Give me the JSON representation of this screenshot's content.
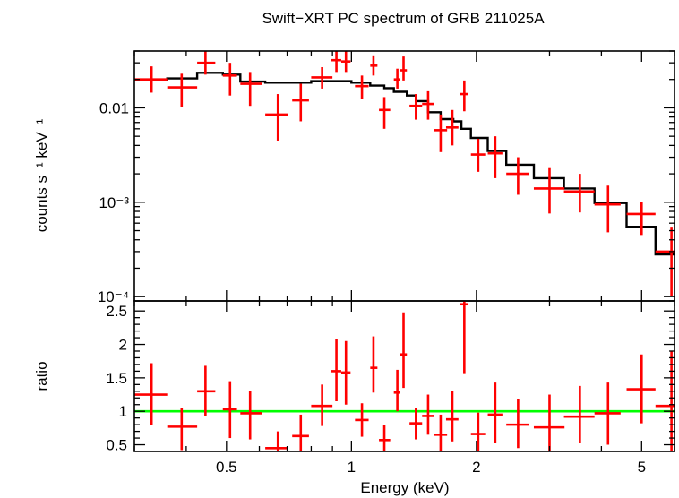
{
  "chart_data": [
    {
      "type": "scatter",
      "panel": "spectrum",
      "title": "Swift−XRT PC spectrum of GRB 211025A",
      "ylabel": "counts s⁻¹ keV⁻¹",
      "x_scale": "log",
      "y_scale": "log",
      "xlim": [
        0.3,
        6.0
      ],
      "ylim": [
        9e-05,
        0.04
      ],
      "y_ticks": [
        {
          "value": 0.01,
          "label": "0.01"
        },
        {
          "value": 0.001,
          "label": "10⁻³"
        },
        {
          "value": 0.0001,
          "label": "10⁻⁴"
        }
      ],
      "series": [
        {
          "kind": "data",
          "color": "#ff0000",
          "points": [
            {
              "x": 0.33,
              "x_lo": 0.3,
              "x_hi": 0.36,
              "y": 0.02,
              "y_lo": 0.0145,
              "y_hi": 0.0275
            },
            {
              "x": 0.39,
              "x_lo": 0.36,
              "x_hi": 0.425,
              "y": 0.0165,
              "y_lo": 0.0102,
              "y_hi": 0.023
            },
            {
              "x": 0.445,
              "x_lo": 0.425,
              "x_hi": 0.47,
              "y": 0.03,
              "y_lo": 0.0225,
              "y_hi": 0.04
            },
            {
              "x": 0.51,
              "x_lo": 0.49,
              "x_hi": 0.53,
              "y": 0.022,
              "y_lo": 0.0135,
              "y_hi": 0.03
            },
            {
              "x": 0.57,
              "x_lo": 0.54,
              "x_hi": 0.61,
              "y": 0.018,
              "y_lo": 0.0105,
              "y_hi": 0.024
            },
            {
              "x": 0.665,
              "x_lo": 0.62,
              "x_hi": 0.705,
              "y": 0.0085,
              "y_lo": 0.0045,
              "y_hi": 0.014
            },
            {
              "x": 0.755,
              "x_lo": 0.72,
              "x_hi": 0.79,
              "y": 0.012,
              "y_lo": 0.0072,
              "y_hi": 0.018
            },
            {
              "x": 0.85,
              "x_lo": 0.8,
              "x_hi": 0.9,
              "y": 0.021,
              "y_lo": 0.016,
              "y_hi": 0.027
            },
            {
              "x": 0.92,
              "x_lo": 0.895,
              "x_hi": 0.945,
              "y": 0.032,
              "y_lo": 0.024,
              "y_hi": 0.04
            },
            {
              "x": 0.97,
              "x_lo": 0.945,
              "x_hi": 0.995,
              "y": 0.031,
              "y_lo": 0.024,
              "y_hi": 0.04
            },
            {
              "x": 1.06,
              "x_lo": 1.02,
              "x_hi": 1.1,
              "y": 0.017,
              "y_lo": 0.0125,
              "y_hi": 0.022
            },
            {
              "x": 1.13,
              "x_lo": 1.11,
              "x_hi": 1.155,
              "y": 0.028,
              "y_lo": 0.022,
              "y_hi": 0.036
            },
            {
              "x": 1.2,
              "x_lo": 1.165,
              "x_hi": 1.24,
              "y": 0.0095,
              "y_lo": 0.006,
              "y_hi": 0.013
            },
            {
              "x": 1.29,
              "x_lo": 1.265,
              "x_hi": 1.31,
              "y": 0.02,
              "y_lo": 0.016,
              "y_hi": 0.026
            },
            {
              "x": 1.335,
              "x_lo": 1.31,
              "x_hi": 1.36,
              "y": 0.025,
              "y_lo": 0.0195,
              "y_hi": 0.035
            },
            {
              "x": 1.43,
              "x_lo": 1.38,
              "x_hi": 1.48,
              "y": 0.0105,
              "y_lo": 0.0075,
              "y_hi": 0.014
            },
            {
              "x": 1.53,
              "x_lo": 1.48,
              "x_hi": 1.58,
              "y": 0.011,
              "y_lo": 0.0075,
              "y_hi": 0.015
            },
            {
              "x": 1.64,
              "x_lo": 1.58,
              "x_hi": 1.7,
              "y": 0.0058,
              "y_lo": 0.0034,
              "y_hi": 0.0085
            },
            {
              "x": 1.75,
              "x_lo": 1.69,
              "x_hi": 1.81,
              "y": 0.0062,
              "y_lo": 0.004,
              "y_hi": 0.0095
            },
            {
              "x": 1.87,
              "x_lo": 1.83,
              "x_hi": 1.91,
              "y": 0.014,
              "y_lo": 0.0092,
              "y_hi": 0.0195
            },
            {
              "x": 2.02,
              "x_lo": 1.94,
              "x_hi": 2.1,
              "y": 0.0032,
              "y_lo": 0.0021,
              "y_hi": 0.0047
            },
            {
              "x": 2.22,
              "x_lo": 2.13,
              "x_hi": 2.31,
              "y": 0.0033,
              "y_lo": 0.0018,
              "y_hi": 0.005
            },
            {
              "x": 2.52,
              "x_lo": 2.36,
              "x_hi": 2.68,
              "y": 0.002,
              "y_lo": 0.0012,
              "y_hi": 0.003
            },
            {
              "x": 3.0,
              "x_lo": 2.75,
              "x_hi": 3.26,
              "y": 0.0014,
              "y_lo": 0.00076,
              "y_hi": 0.0023
            },
            {
              "x": 3.55,
              "x_lo": 3.25,
              "x_hi": 3.85,
              "y": 0.0013,
              "y_lo": 0.00078,
              "y_hi": 0.002
            },
            {
              "x": 4.15,
              "x_lo": 3.85,
              "x_hi": 4.45,
              "y": 0.00095,
              "y_lo": 0.00048,
              "y_hi": 0.0015
            },
            {
              "x": 5.0,
              "x_lo": 4.6,
              "x_hi": 5.4,
              "y": 0.00075,
              "y_lo": 0.00045,
              "y_hi": 0.001
            },
            {
              "x": 5.9,
              "x_lo": 5.4,
              "x_hi": 6.0,
              "y": 0.0003,
              "y_lo": 0.0001,
              "y_hi": 0.00055
            }
          ]
        },
        {
          "kind": "model",
          "color": "#000000",
          "steps": [
            {
              "x_lo": 0.3,
              "x_hi": 0.36,
              "y": 0.02
            },
            {
              "x_lo": 0.36,
              "x_hi": 0.425,
              "y": 0.0205
            },
            {
              "x_lo": 0.425,
              "x_hi": 0.49,
              "y": 0.0235
            },
            {
              "x_lo": 0.49,
              "x_hi": 0.54,
              "y": 0.0225
            },
            {
              "x_lo": 0.54,
              "x_hi": 0.62,
              "y": 0.019
            },
            {
              "x_lo": 0.62,
              "x_hi": 0.8,
              "y": 0.0185
            },
            {
              "x_lo": 0.8,
              "x_hi": 1.0,
              "y": 0.0192
            },
            {
              "x_lo": 1.0,
              "x_hi": 1.11,
              "y": 0.0185
            },
            {
              "x_lo": 1.11,
              "x_hi": 1.2,
              "y": 0.0172
            },
            {
              "x_lo": 1.2,
              "x_hi": 1.265,
              "y": 0.0162
            },
            {
              "x_lo": 1.265,
              "x_hi": 1.36,
              "y": 0.0148
            },
            {
              "x_lo": 1.36,
              "x_hi": 1.43,
              "y": 0.0135
            },
            {
              "x_lo": 1.43,
              "x_hi": 1.53,
              "y": 0.0118
            },
            {
              "x_lo": 1.53,
              "x_hi": 1.64,
              "y": 0.009
            },
            {
              "x_lo": 1.64,
              "x_hi": 1.76,
              "y": 0.0076
            },
            {
              "x_lo": 1.76,
              "x_hi": 1.84,
              "y": 0.0072
            },
            {
              "x_lo": 1.84,
              "x_hi": 1.94,
              "y": 0.006
            },
            {
              "x_lo": 1.94,
              "x_hi": 2.13,
              "y": 0.0048
            },
            {
              "x_lo": 2.13,
              "x_hi": 2.36,
              "y": 0.0035
            },
            {
              "x_lo": 2.36,
              "x_hi": 2.75,
              "y": 0.0025
            },
            {
              "x_lo": 2.75,
              "x_hi": 3.25,
              "y": 0.0018
            },
            {
              "x_lo": 3.25,
              "x_hi": 3.85,
              "y": 0.0014
            },
            {
              "x_lo": 3.85,
              "x_hi": 4.6,
              "y": 0.00098
            },
            {
              "x_lo": 4.6,
              "x_hi": 5.4,
              "y": 0.00055
            },
            {
              "x_lo": 5.4,
              "x_hi": 6.0,
              "y": 0.00028
            }
          ]
        }
      ]
    },
    {
      "type": "scatter",
      "panel": "ratio",
      "xlabel": "Energy (keV)",
      "ylabel": "ratio",
      "x_scale": "log",
      "xlim": [
        0.3,
        6.0
      ],
      "ylim": [
        0.4,
        2.65
      ],
      "x_ticks": [
        {
          "value": 0.5,
          "label": "0.5"
        },
        {
          "value": 1,
          "label": "1"
        },
        {
          "value": 2,
          "label": "2"
        },
        {
          "value": 5,
          "label": "5"
        }
      ],
      "y_ticks": [
        {
          "value": 0.5,
          "label": "0.5"
        },
        {
          "value": 1,
          "label": "1"
        },
        {
          "value": 1.5,
          "label": "1.5"
        },
        {
          "value": 2,
          "label": "2"
        },
        {
          "value": 2.5,
          "label": "2.5"
        }
      ],
      "reference_line": {
        "y": 1,
        "color": "#00ff00"
      },
      "series": [
        {
          "kind": "data",
          "color": "#ff0000",
          "points": [
            {
              "x": 0.33,
              "x_lo": 0.3,
              "x_hi": 0.36,
              "y": 1.25,
              "y_lo": 0.8,
              "y_hi": 1.72
            },
            {
              "x": 0.39,
              "x_lo": 0.36,
              "x_hi": 0.425,
              "y": 0.77,
              "y_lo": 0.42,
              "y_hi": 1.05
            },
            {
              "x": 0.445,
              "x_lo": 0.425,
              "x_hi": 0.47,
              "y": 1.3,
              "y_lo": 0.93,
              "y_hi": 1.68
            },
            {
              "x": 0.51,
              "x_lo": 0.49,
              "x_hi": 0.53,
              "y": 1.03,
              "y_lo": 0.6,
              "y_hi": 1.45
            },
            {
              "x": 0.57,
              "x_lo": 0.54,
              "x_hi": 0.61,
              "y": 0.97,
              "y_lo": 0.58,
              "y_hi": 1.3
            },
            {
              "x": 0.665,
              "x_lo": 0.62,
              "x_hi": 0.705,
              "y": 0.45,
              "y_lo": 0.4,
              "y_hi": 0.7
            },
            {
              "x": 0.755,
              "x_lo": 0.72,
              "x_hi": 0.79,
              "y": 0.63,
              "y_lo": 0.4,
              "y_hi": 0.95
            },
            {
              "x": 0.85,
              "x_lo": 0.8,
              "x_hi": 0.9,
              "y": 1.08,
              "y_lo": 0.78,
              "y_hi": 1.4
            },
            {
              "x": 0.92,
              "x_lo": 0.895,
              "x_hi": 0.945,
              "y": 1.6,
              "y_lo": 1.15,
              "y_hi": 2.08
            },
            {
              "x": 0.97,
              "x_lo": 0.945,
              "x_hi": 0.995,
              "y": 1.58,
              "y_lo": 1.1,
              "y_hi": 2.05
            },
            {
              "x": 1.06,
              "x_lo": 1.02,
              "x_hi": 1.1,
              "y": 0.87,
              "y_lo": 0.62,
              "y_hi": 1.12
            },
            {
              "x": 1.13,
              "x_lo": 1.11,
              "x_hi": 1.155,
              "y": 1.65,
              "y_lo": 1.28,
              "y_hi": 2.12
            },
            {
              "x": 1.2,
              "x_lo": 1.165,
              "x_hi": 1.24,
              "y": 0.57,
              "y_lo": 0.4,
              "y_hi": 0.8
            },
            {
              "x": 1.29,
              "x_lo": 1.265,
              "x_hi": 1.31,
              "y": 1.28,
              "y_lo": 1.0,
              "y_hi": 1.62
            },
            {
              "x": 1.335,
              "x_lo": 1.31,
              "x_hi": 1.36,
              "y": 1.85,
              "y_lo": 1.35,
              "y_hi": 2.48
            },
            {
              "x": 1.43,
              "x_lo": 1.38,
              "x_hi": 1.48,
              "y": 0.82,
              "y_lo": 0.58,
              "y_hi": 1.05
            },
            {
              "x": 1.53,
              "x_lo": 1.48,
              "x_hi": 1.58,
              "y": 0.93,
              "y_lo": 0.65,
              "y_hi": 1.25
            },
            {
              "x": 1.64,
              "x_lo": 1.58,
              "x_hi": 1.7,
              "y": 0.65,
              "y_lo": 0.4,
              "y_hi": 0.95
            },
            {
              "x": 1.75,
              "x_lo": 1.69,
              "x_hi": 1.81,
              "y": 0.88,
              "y_lo": 0.55,
              "y_hi": 1.3
            },
            {
              "x": 1.87,
              "x_lo": 1.83,
              "x_hi": 1.91,
              "y": 2.6,
              "y_lo": 1.57,
              "y_hi": 2.65
            },
            {
              "x": 2.02,
              "x_lo": 1.94,
              "x_hi": 2.1,
              "y": 0.66,
              "y_lo": 0.4,
              "y_hi": 0.98
            },
            {
              "x": 2.22,
              "x_lo": 2.13,
              "x_hi": 2.31,
              "y": 0.95,
              "y_lo": 0.52,
              "y_hi": 1.43
            },
            {
              "x": 2.52,
              "x_lo": 2.36,
              "x_hi": 2.68,
              "y": 0.8,
              "y_lo": 0.45,
              "y_hi": 1.18
            },
            {
              "x": 3.0,
              "x_lo": 2.75,
              "x_hi": 3.26,
              "y": 0.76,
              "y_lo": 0.4,
              "y_hi": 1.25
            },
            {
              "x": 3.55,
              "x_lo": 3.25,
              "x_hi": 3.85,
              "y": 0.92,
              "y_lo": 0.52,
              "y_hi": 1.38
            },
            {
              "x": 4.15,
              "x_lo": 3.85,
              "x_hi": 4.45,
              "y": 0.97,
              "y_lo": 0.5,
              "y_hi": 1.43
            },
            {
              "x": 5.0,
              "x_lo": 4.6,
              "x_hi": 5.4,
              "y": 1.33,
              "y_lo": 0.82,
              "y_hi": 1.85
            },
            {
              "x": 5.9,
              "x_lo": 5.4,
              "x_hi": 6.0,
              "y": 1.08,
              "y_lo": 0.4,
              "y_hi": 1.9
            }
          ]
        }
      ]
    }
  ]
}
